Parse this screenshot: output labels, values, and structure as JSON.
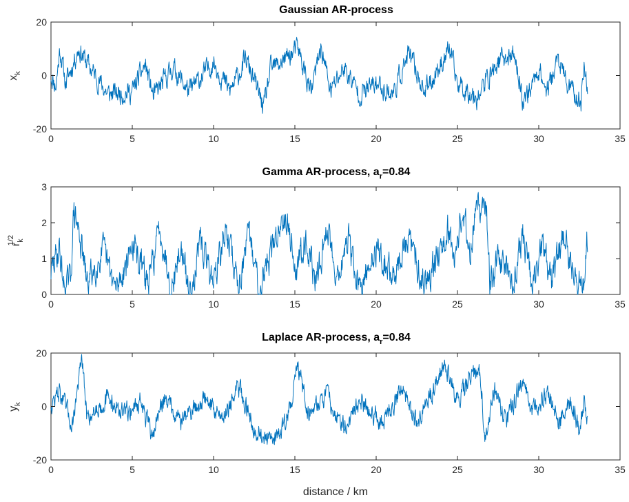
{
  "chart_data": [
    {
      "type": "line",
      "title": "Gaussian AR-process",
      "title_sub": "",
      "title_post": "",
      "ylabel": "x",
      "ylabel_sub": "k",
      "ylabel_sup": "",
      "xlabel": "",
      "xlim": [
        0,
        35
      ],
      "ylim": [
        -20,
        20
      ],
      "xticks": [
        "0",
        "5",
        "10",
        "15",
        "20",
        "25",
        "30",
        "35"
      ],
      "yticks": [
        "-20",
        "0",
        "20"
      ],
      "series_color": "#0072BD",
      "x_range": [
        0,
        33
      ],
      "keypoints": [
        [
          0,
          0
        ],
        [
          0.3,
          -4
        ],
        [
          0.55,
          10
        ],
        [
          0.9,
          -3
        ],
        [
          1.7,
          10
        ],
        [
          2.5,
          2
        ],
        [
          3.5,
          -7
        ],
        [
          5,
          -6
        ],
        [
          5.8,
          4
        ],
        [
          6.3,
          -8
        ],
        [
          7.5,
          3
        ],
        [
          8.5,
          -6
        ],
        [
          10,
          5
        ],
        [
          11,
          -6
        ],
        [
          12,
          6
        ],
        [
          13.1,
          -12
        ],
        [
          13.5,
          2
        ],
        [
          15.2,
          10
        ],
        [
          16,
          -7
        ],
        [
          16.6,
          11
        ],
        [
          17.2,
          -6
        ],
        [
          18,
          3
        ],
        [
          19,
          -7
        ],
        [
          20,
          -3
        ],
        [
          21,
          -7
        ],
        [
          22,
          8
        ],
        [
          23,
          -6
        ],
        [
          24.5,
          10
        ],
        [
          25,
          -3
        ],
        [
          26.2,
          -8
        ],
        [
          27.5,
          5
        ],
        [
          28.5,
          8
        ],
        [
          29,
          -9
        ],
        [
          29.5,
          -5
        ],
        [
          30,
          3
        ],
        [
          30.5,
          -6
        ],
        [
          31.2,
          6
        ],
        [
          31.8,
          -4
        ],
        [
          32.6,
          -10
        ],
        [
          32.8,
          4
        ],
        [
          33,
          -5
        ]
      ],
      "amplitude": 3.2,
      "clip": [
        -20,
        20
      ]
    },
    {
      "type": "line",
      "title": "Gamma AR-process, a",
      "title_sub": "r",
      "title_post": "=0.84",
      "ylabel": "r",
      "ylabel_sub": "k",
      "ylabel_sup": "1/2",
      "xlabel": "",
      "xlim": [
        0,
        35
      ],
      "ylim": [
        0,
        3
      ],
      "xticks": [
        "0",
        "5",
        "10",
        "15",
        "20",
        "25",
        "30",
        "35"
      ],
      "yticks": [
        "0",
        "1",
        "2",
        "3"
      ],
      "series_color": "#0072BD",
      "x_range": [
        0,
        33
      ],
      "keypoints": [
        [
          0,
          0.6
        ],
        [
          0.5,
          1.3
        ],
        [
          0.8,
          0.2
        ],
        [
          1.2,
          0.4
        ],
        [
          1.4,
          2.3
        ],
        [
          1.8,
          1.6
        ],
        [
          2.2,
          0.3
        ],
        [
          3.2,
          1.2
        ],
        [
          4,
          0.1
        ],
        [
          5,
          1.4
        ],
        [
          6,
          0.3
        ],
        [
          6.7,
          1.9
        ],
        [
          7.4,
          0.2
        ],
        [
          8,
          1.3
        ],
        [
          8.5,
          0
        ],
        [
          9.2,
          1.4
        ],
        [
          10,
          0.4
        ],
        [
          10.8,
          1.8
        ],
        [
          11.5,
          0.3
        ],
        [
          12.2,
          1.6
        ],
        [
          12.8,
          0.2
        ],
        [
          13.8,
          1.5
        ],
        [
          14.4,
          2.4
        ],
        [
          15.1,
          0.6
        ],
        [
          15.6,
          1.7
        ],
        [
          16.3,
          0.3
        ],
        [
          17,
          1.9
        ],
        [
          17.6,
          0.5
        ],
        [
          18.3,
          1.5
        ],
        [
          19,
          0
        ],
        [
          20,
          1.3
        ],
        [
          21,
          0.5
        ],
        [
          22,
          1.5
        ],
        [
          23,
          0.3
        ],
        [
          24,
          1.4
        ],
        [
          24.4,
          1.9
        ],
        [
          24.8,
          1
        ],
        [
          25.3,
          2.3
        ],
        [
          25.8,
          1.2
        ],
        [
          26.1,
          2.5
        ],
        [
          26.5,
          2.2
        ],
        [
          26.8,
          2.4
        ],
        [
          27,
          0.2
        ],
        [
          27.6,
          1.1
        ],
        [
          28.4,
          0.3
        ],
        [
          29,
          1.7
        ],
        [
          29.6,
          0.1
        ],
        [
          30.2,
          1.4
        ],
        [
          30.8,
          0.3
        ],
        [
          31.5,
          1.7
        ],
        [
          32.2,
          0.5
        ],
        [
          32.6,
          0.3
        ],
        [
          32.8,
          0.1
        ],
        [
          32.95,
          1.8
        ],
        [
          33,
          1.2
        ]
      ],
      "amplitude": 0.35,
      "clip": [
        0,
        3
      ]
    },
    {
      "type": "line",
      "title": "Laplace AR-process, a",
      "title_sub": "r",
      "title_post": "=0.84",
      "ylabel": "y",
      "ylabel_sub": "k",
      "ylabel_sup": "",
      "xlabel": "distance / km",
      "xlim": [
        0,
        35
      ],
      "ylim": [
        -20,
        20
      ],
      "xticks": [
        "0",
        "5",
        "10",
        "15",
        "20",
        "25",
        "30",
        "35"
      ],
      "yticks": [
        "-20",
        "0",
        "20"
      ],
      "series_color": "#0072BD",
      "x_range": [
        0,
        33
      ],
      "keypoints": [
        [
          0,
          0
        ],
        [
          0.5,
          6
        ],
        [
          1.3,
          -7
        ],
        [
          1.9,
          18
        ],
        [
          2.2,
          -4
        ],
        [
          3.5,
          3
        ],
        [
          4.5,
          -3
        ],
        [
          5.5,
          2
        ],
        [
          6.2,
          -11
        ],
        [
          7,
          4
        ],
        [
          8,
          -5
        ],
        [
          9.5,
          3
        ],
        [
          10.5,
          -4
        ],
        [
          11.6,
          7
        ],
        [
          12.5,
          -8
        ],
        [
          13.5,
          -14
        ],
        [
          14.5,
          -5
        ],
        [
          15.2,
          15
        ],
        [
          15.8,
          -2
        ],
        [
          17,
          4
        ],
        [
          18,
          -8
        ],
        [
          19,
          2
        ],
        [
          20.5,
          -6
        ],
        [
          21.5,
          7
        ],
        [
          22.5,
          -6
        ],
        [
          23.5,
          6
        ],
        [
          24.2,
          17
        ],
        [
          25,
          2
        ],
        [
          25.7,
          10
        ],
        [
          26.4,
          13
        ],
        [
          26.7,
          -12
        ],
        [
          27.3,
          6
        ],
        [
          28,
          -6
        ],
        [
          29,
          10
        ],
        [
          29.6,
          -3
        ],
        [
          30.5,
          5
        ],
        [
          31.3,
          -6
        ],
        [
          32,
          2
        ],
        [
          32.5,
          -10
        ],
        [
          32.8,
          2
        ],
        [
          33,
          -7
        ]
      ],
      "amplitude": 3,
      "clip": [
        -20,
        20
      ]
    }
  ]
}
